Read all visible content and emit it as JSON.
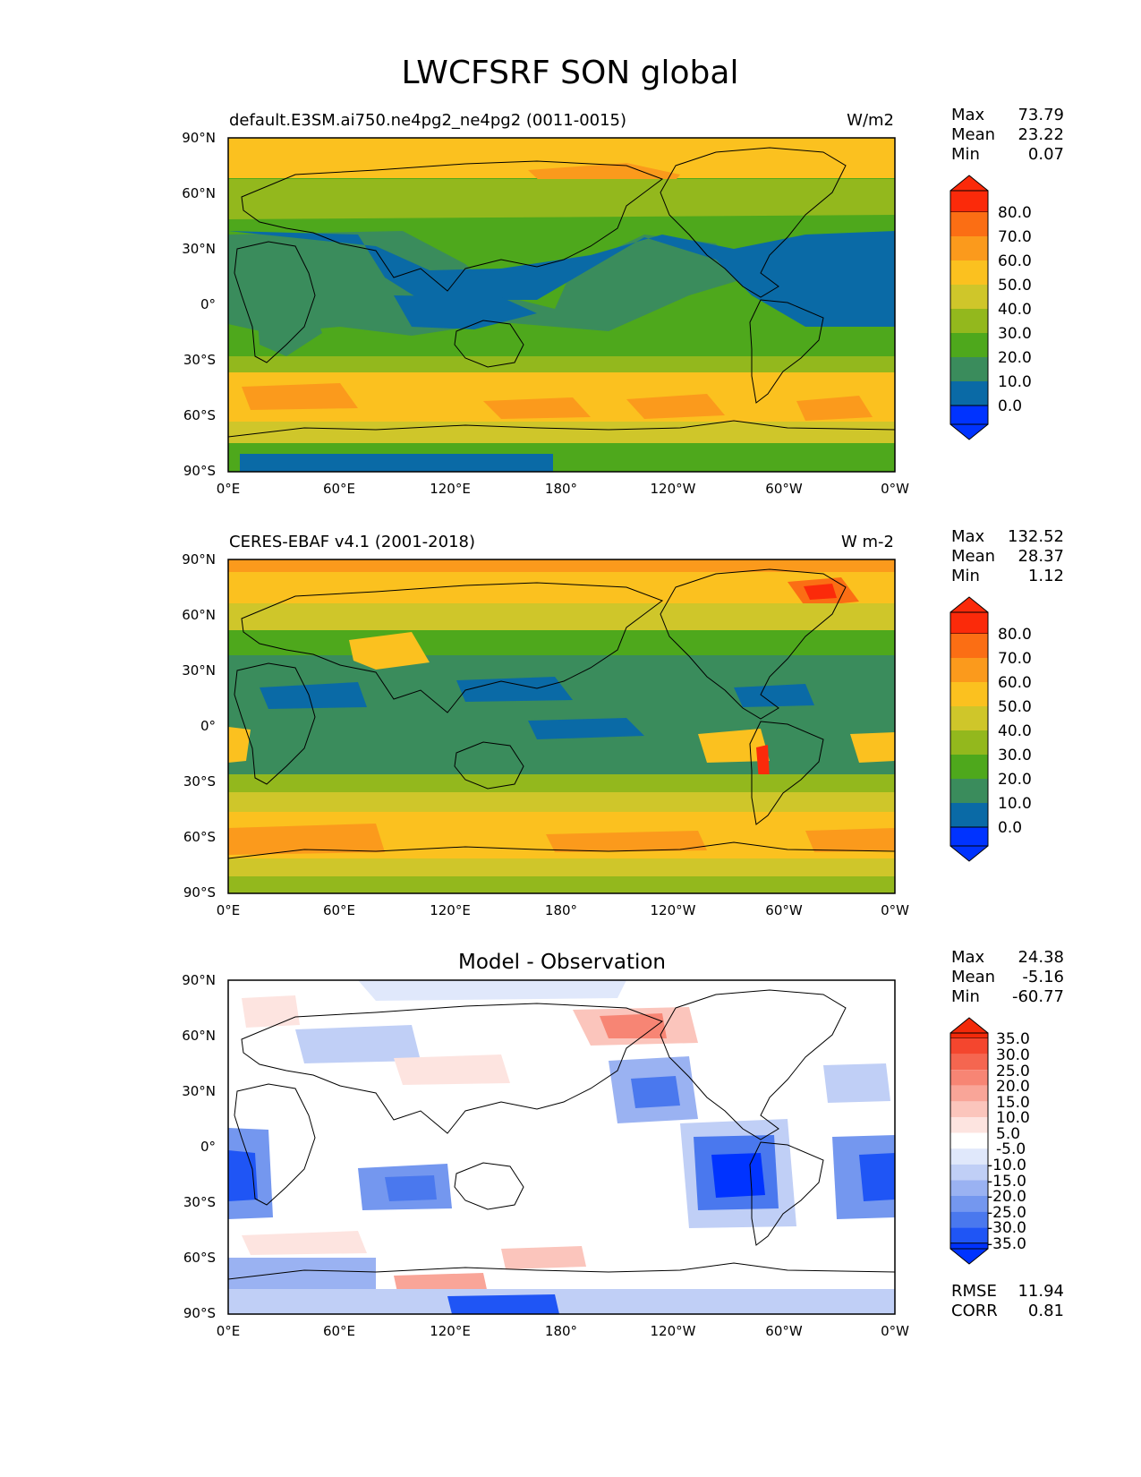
{
  "figure_title": "LWCFSRF SON global",
  "x_ticks": [
    "0°E",
    "60°E",
    "120°E",
    "180°",
    "120°W",
    "60°W",
    "0°W"
  ],
  "y_ticks": [
    "90°N",
    "60°N",
    "30°N",
    "0°",
    "30°S",
    "60°S",
    "90°S"
  ],
  "colors": {
    "abs_levels": [
      "#0033ff",
      "#0a6aa6",
      "#3a8c5c",
      "#4ea81c",
      "#93b81d",
      "#cfc62a",
      "#fbc11f",
      "#fb9a1c",
      "#fb6e14",
      "#fb2a0a"
    ],
    "diff_levels": [
      "#0033ff",
      "#1f55f5",
      "#4a78ee",
      "#7497ef",
      "#9ab2f2",
      "#c0cff6",
      "#e0e8fb",
      "#ffffff",
      "#fde4e0",
      "#fbc5bc",
      "#f9a598",
      "#f78574",
      "#f56650",
      "#f4462e",
      "#f22a0a"
    ],
    "land_edge": "#000000"
  },
  "panels": [
    {
      "left_title": "default.E3SM.ai750.ne4pg2_ne4pg2 (0011-0015)",
      "center_title": "",
      "right_title": "W/m2",
      "stats": [
        {
          "label": "Max",
          "value": "73.79"
        },
        {
          "label": "Mean",
          "value": "23.22"
        },
        {
          "label": "Min",
          "value": "0.07"
        }
      ],
      "colorbar_labels": [
        "80.0",
        "70.0",
        "60.0",
        "50.0",
        "40.0",
        "30.0",
        "20.0",
        "10.0",
        "0.0"
      ],
      "extra_stats": []
    },
    {
      "left_title": "CERES-EBAF v4.1 (2001-2018)",
      "center_title": "",
      "right_title": "W m-2",
      "stats": [
        {
          "label": "Max",
          "value": "132.52"
        },
        {
          "label": "Mean",
          "value": "28.37"
        },
        {
          "label": "Min",
          "value": "1.12"
        }
      ],
      "colorbar_labels": [
        "80.0",
        "70.0",
        "60.0",
        "50.0",
        "40.0",
        "30.0",
        "20.0",
        "10.0",
        "0.0"
      ],
      "extra_stats": []
    },
    {
      "left_title": "",
      "center_title": "Model - Observation",
      "right_title": "",
      "stats": [
        {
          "label": "Max",
          "value": "24.38"
        },
        {
          "label": "Mean",
          "value": "-5.16"
        },
        {
          "label": "Min",
          "value": "-60.77"
        }
      ],
      "colorbar_labels": [
        "35.0",
        "30.0",
        "25.0",
        "20.0",
        "15.0",
        "10.0",
        "5.0",
        "-5.0",
        "-10.0",
        "-15.0",
        "-20.0",
        "-25.0",
        "-30.0",
        "-35.0"
      ],
      "extra_stats": [
        {
          "label": "RMSE",
          "value": "11.94"
        },
        {
          "label": "CORR",
          "value": "0.81"
        }
      ]
    }
  ],
  "chart_data": [
    {
      "type": "heatmap",
      "title": "default.E3SM.ai750.ne4pg2_ne4pg2 (0011-0015)",
      "units": "W/m2",
      "xlim": [
        0,
        360
      ],
      "ylim": [
        -90,
        90
      ],
      "levels": [
        0,
        10,
        20,
        30,
        40,
        50,
        60,
        70,
        80
      ],
      "zonal_mean_approx": {
        "lat": [
          90,
          80,
          70,
          60,
          50,
          40,
          30,
          20,
          10,
          0,
          -10,
          -20,
          -30,
          -40,
          -50,
          -60,
          -70,
          -80,
          -90
        ],
        "value": [
          40,
          55,
          50,
          42,
          35,
          28,
          14,
          8,
          12,
          14,
          15,
          12,
          20,
          35,
          47,
          50,
          42,
          18,
          8
        ]
      }
    },
    {
      "type": "heatmap",
      "title": "CERES-EBAF v4.1 (2001-2018)",
      "units": "W m-2",
      "xlim": [
        0,
        360
      ],
      "ylim": [
        -90,
        90
      ],
      "levels": [
        0,
        10,
        20,
        30,
        40,
        50,
        60,
        70,
        80
      ],
      "zonal_mean_approx": {
        "lat": [
          90,
          80,
          70,
          60,
          50,
          40,
          30,
          20,
          10,
          0,
          -10,
          -20,
          -30,
          -40,
          -50,
          -60,
          -70,
          -80,
          -90
        ],
        "value": [
          65,
          52,
          45,
          40,
          35,
          30,
          25,
          18,
          15,
          18,
          22,
          24,
          30,
          40,
          50,
          58,
          45,
          32,
          28
        ]
      }
    },
    {
      "type": "heatmap",
      "title": "Model - Observation",
      "xlim": [
        0,
        360
      ],
      "ylim": [
        -90,
        90
      ],
      "levels": [
        -35,
        -30,
        -25,
        -20,
        -15,
        -10,
        -5,
        5,
        10,
        15,
        20,
        25,
        30,
        35
      ],
      "zonal_mean_approx": {
        "lat": [
          90,
          80,
          70,
          60,
          50,
          40,
          30,
          20,
          10,
          0,
          -10,
          -20,
          -30,
          -40,
          -50,
          -60,
          -70,
          -80,
          -90
        ],
        "value": [
          -18,
          2,
          5,
          2,
          0,
          -2,
          -8,
          -6,
          -4,
          -6,
          -10,
          -12,
          -10,
          -5,
          2,
          -3,
          -4,
          -12,
          -18
        ]
      }
    }
  ]
}
